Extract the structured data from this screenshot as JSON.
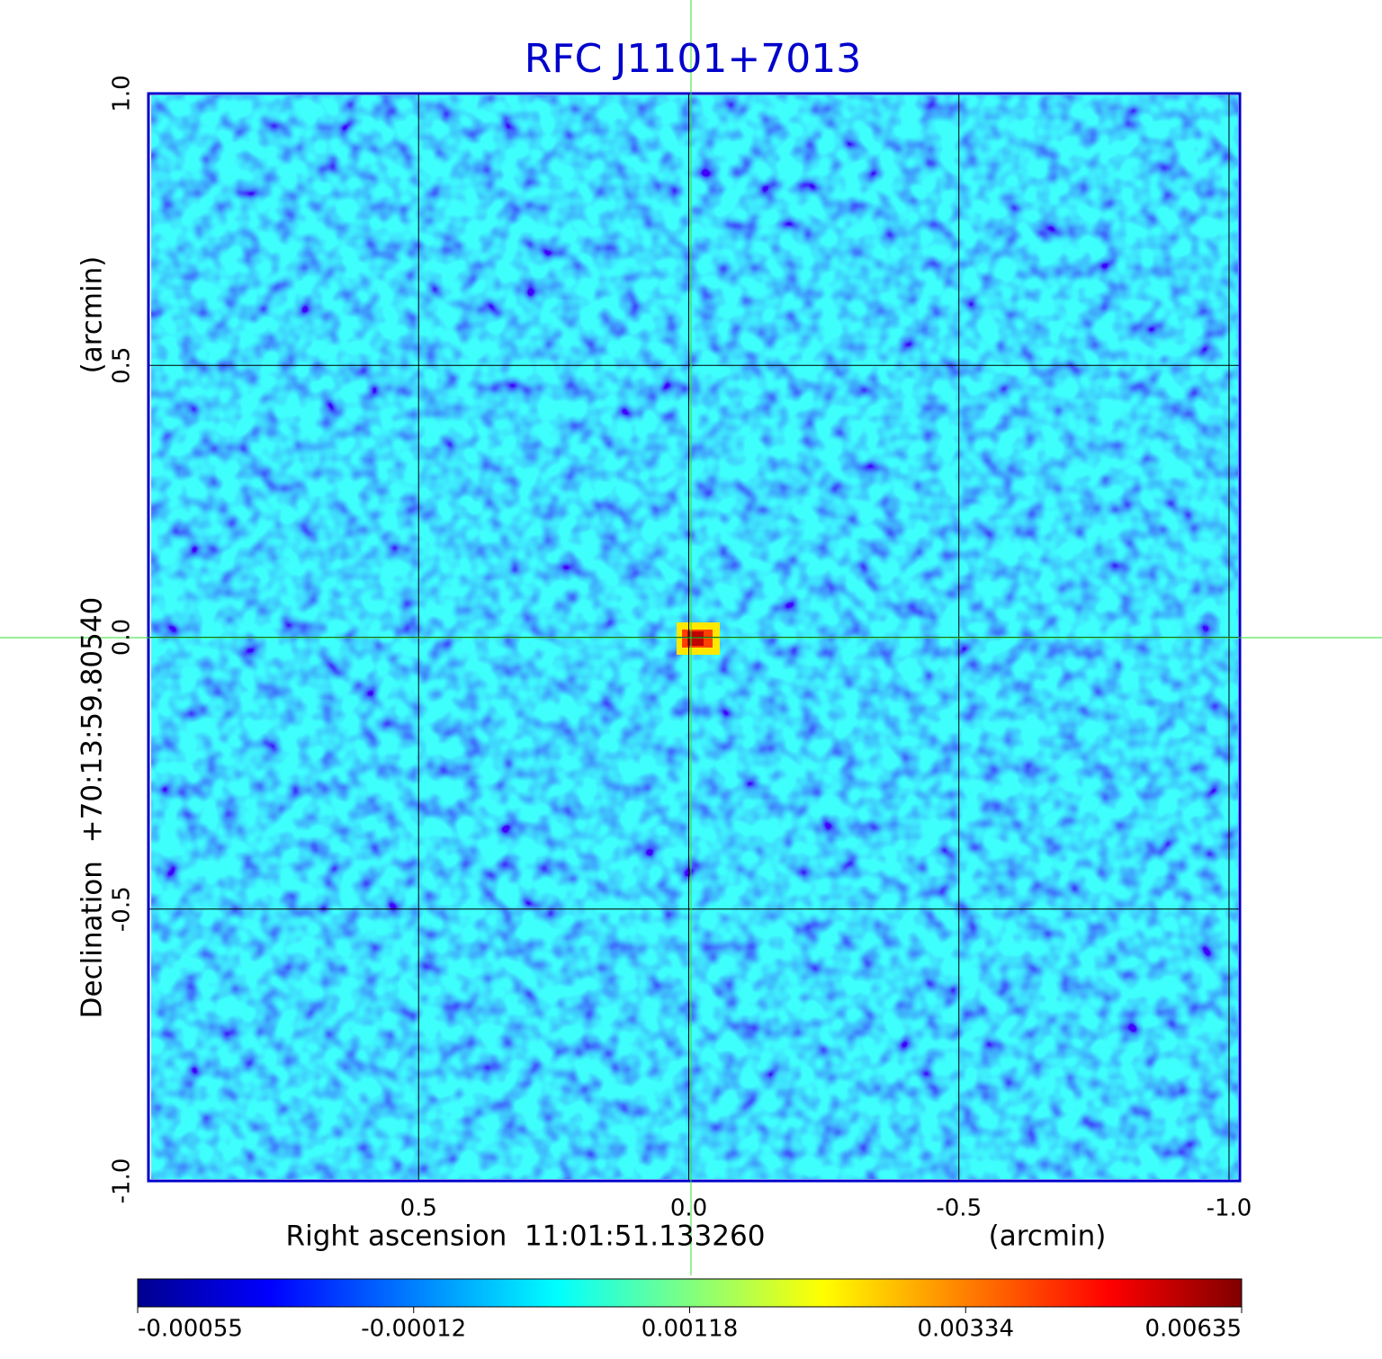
{
  "chart_data": {
    "type": "image",
    "title": "RFC J1101+7013",
    "xlabel": "Right ascension  11:01:51.133260",
    "xunit": "(arcmin)",
    "ylabel": "Declination  +70:13:59.80540",
    "yunit": "(arcmin)",
    "xlim": [
      1.0,
      -1.02
    ],
    "xticks": [
      0.5,
      {
        "value": 0,
        "label": "0.0"
      },
      -0.5,
      {
        "value": -1,
        "label": "-1.0"
      }
    ],
    "ylim": [
      -1.0,
      1.0
    ],
    "yticks": [
      {
        "value": 1,
        "label": "1.0"
      },
      0.5,
      {
        "value": 0,
        "label": "0.0"
      },
      -0.5,
      {
        "value": -1,
        "label": "-1.0"
      }
    ],
    "grid": true,
    "frame_color": "#0000cc",
    "colorbar_ticks": [
      -0.00055,
      -0.00012,
      0.00118,
      0.00334,
      0.00635
    ]
  }
}
